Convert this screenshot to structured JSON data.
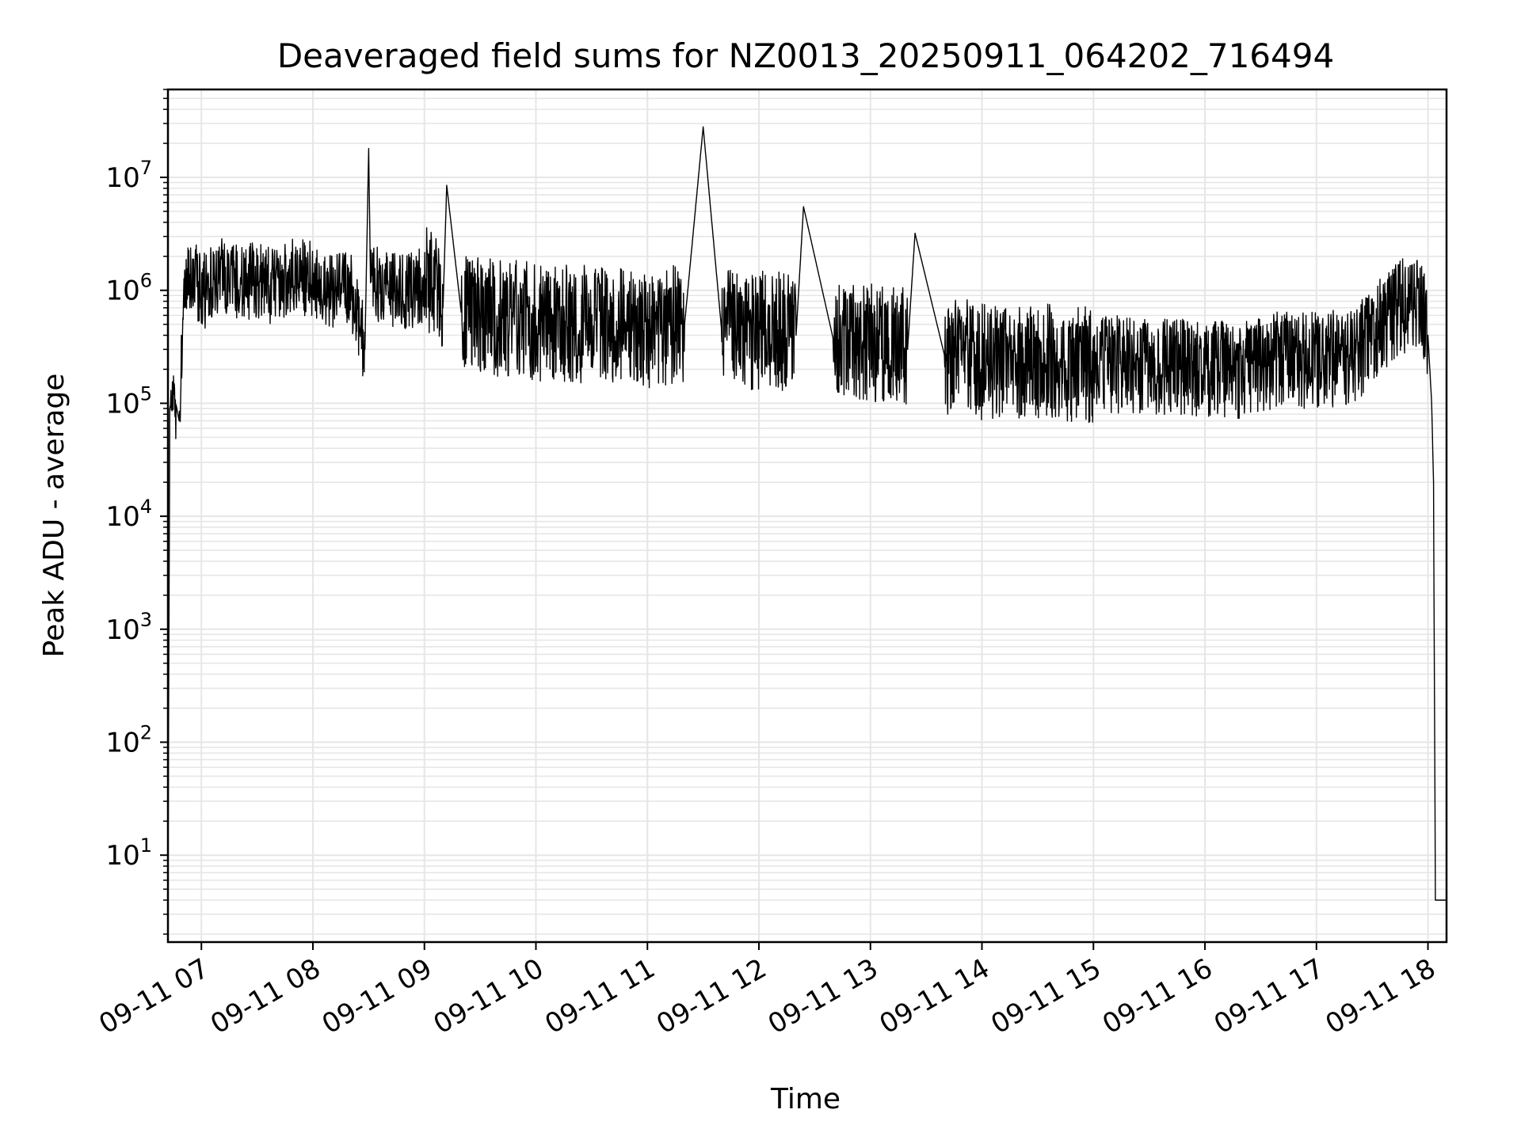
{
  "chart_data": {
    "type": "line",
    "title": "Deaveraged field sums for NZ0013_20250911_064202_716494",
    "xlabel": "Time",
    "ylabel": "Peak ADU - average",
    "x_ticks": [
      "09-11 07",
      "09-11 08",
      "09-11 09",
      "09-11 10",
      "09-11 11",
      "09-11 12",
      "09-11 13",
      "09-11 14",
      "09-11 15",
      "09-11 16",
      "09-11 17",
      "09-11 18"
    ],
    "y_ticks": [
      {
        "base": "10",
        "exp": "1",
        "value": 10
      },
      {
        "base": "10",
        "exp": "2",
        "value": 100
      },
      {
        "base": "10",
        "exp": "3",
        "value": 1000
      },
      {
        "base": "10",
        "exp": "4",
        "value": 10000
      },
      {
        "base": "10",
        "exp": "5",
        "value": 100000
      },
      {
        "base": "10",
        "exp": "6",
        "value": 1000000
      },
      {
        "base": "10",
        "exp": "7",
        "value": 10000000
      }
    ],
    "xlim": [
      "2025-09-11 06:42",
      "2025-09-11 18:10"
    ],
    "ylim": [
      1.7,
      60000000
    ],
    "yscale": "log",
    "grid": true,
    "line_color": "#000000",
    "grid_color": "#e6e6e6",
    "series": [
      {
        "x": [
          "06:42",
          "06:43",
          "06:45",
          "06:48",
          "06:50",
          "06:52",
          "06:54",
          "06:56",
          "06:57",
          "06:58",
          "07:00",
          "07:10",
          "07:20",
          "07:30",
          "07:40",
          "07:50",
          "08:00",
          "08:10",
          "08:20",
          "08:28",
          "08:30",
          "08:31",
          "08:40",
          "08:50",
          "09:00",
          "09:10",
          "09:12",
          "09:20",
          "09:40",
          "10:00",
          "10:20",
          "10:40",
          "11:00",
          "11:20",
          "11:30",
          "11:40",
          "12:00",
          "12:20",
          "12:24",
          "12:40",
          "13:00",
          "13:20",
          "13:24",
          "13:40",
          "14:00",
          "14:20",
          "14:40",
          "15:00",
          "15:20",
          "15:40",
          "16:00",
          "16:20",
          "16:40",
          "17:00",
          "17:20",
          "17:40",
          "17:55",
          "18:00",
          "18:02",
          "18:03",
          "18:04",
          "18:05",
          "18:10"
        ],
        "y": [
          5,
          90000,
          130000,
          70000,
          500000,
          1000000,
          1500000,
          800000,
          1200000,
          1000000,
          900000,
          1300000,
          1100000,
          1200000,
          1000000,
          1300000,
          1200000,
          900000,
          1000000,
          300000,
          18000000,
          1200000,
          1000000,
          900000,
          1100000,
          700000,
          8500000,
          600000,
          550000,
          500000,
          480000,
          450000,
          420000,
          500000,
          28000000,
          430000,
          420000,
          400000,
          5500000,
          370000,
          330000,
          300000,
          3200000,
          260000,
          220000,
          230000,
          210000,
          215000,
          210000,
          200000,
          195000,
          190000,
          240000,
          230000,
          250000,
          600000,
          800000,
          400000,
          100000,
          20000,
          4,
          4,
          4
        ]
      }
    ]
  }
}
